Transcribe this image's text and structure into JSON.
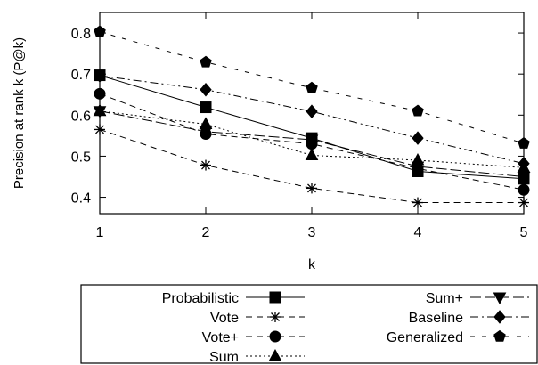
{
  "chart_data": {
    "type": "line",
    "title": "",
    "xlabel": "k",
    "ylabel": "Precision at rank k (P@k)",
    "x": [
      1,
      2,
      3,
      4,
      5
    ],
    "xlim": [
      1,
      5
    ],
    "ylim": [
      0.36,
      0.85
    ],
    "xticks": [
      "1",
      "2",
      "3",
      "4",
      "5"
    ],
    "yticks": [
      "0.4",
      "0.5",
      "0.6",
      "0.7",
      "0.8"
    ],
    "yticks_values": [
      0.4,
      0.5,
      0.6,
      0.7,
      0.8
    ],
    "grid": false,
    "legend_position": "bottom",
    "series": [
      {
        "name": "Probabilistic",
        "values": [
          0.697,
          0.619,
          0.544,
          0.463,
          0.445
        ],
        "marker": "square",
        "dash": "solid"
      },
      {
        "name": "Vote",
        "values": [
          0.565,
          0.478,
          0.422,
          0.387,
          0.387
        ],
        "marker": "star",
        "dash": "dashed"
      },
      {
        "name": "Vote+",
        "values": [
          0.652,
          0.554,
          0.53,
          0.47,
          0.418
        ],
        "marker": "circle",
        "dash": "dashed"
      },
      {
        "name": "Sum",
        "values": [
          0.61,
          0.578,
          0.502,
          0.49,
          0.472
        ],
        "marker": "triangle-up",
        "dash": "dotted"
      },
      {
        "name": "Sum+",
        "values": [
          0.61,
          0.56,
          0.54,
          0.475,
          0.45
        ],
        "marker": "triangle-down",
        "dash": "longdash"
      },
      {
        "name": "Baseline",
        "values": [
          0.696,
          0.662,
          0.609,
          0.544,
          0.482
        ],
        "marker": "diamond",
        "dash": "dashdot"
      },
      {
        "name": "Generalized",
        "values": [
          0.803,
          0.729,
          0.666,
          0.61,
          0.531
        ],
        "marker": "pentagon",
        "dash": "dashed-wide"
      }
    ]
  }
}
